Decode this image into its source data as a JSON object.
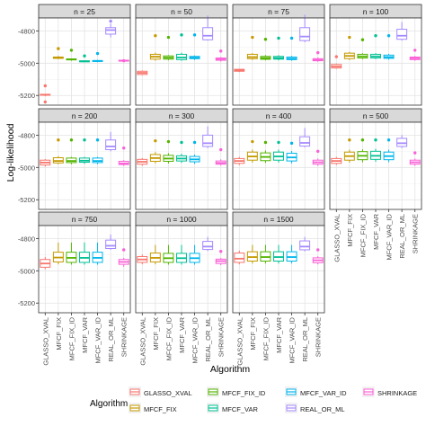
{
  "chart_data": {
    "type": "boxplot",
    "xlabel": "Algorithm",
    "ylabel": "Log-likelihood",
    "ylim": [
      -5260,
      -4720
    ],
    "y_ticks": [
      -5200,
      -5000,
      -4800
    ],
    "y_tick_labels": [
      "-5200",
      "-5000",
      "-4800"
    ],
    "legend_title": "Algorithm",
    "legend_position": "bottom",
    "grid": true,
    "categories": [
      "GLASSO_XVAL",
      "MFCF_FIX",
      "MFCF_FIX_ID",
      "MFCF_VAR",
      "MFCF_VAR_ID",
      "REAL_OR_ML",
      "SHRINKAGE"
    ],
    "colors": [
      "#F8766D",
      "#C49A00",
      "#53B400",
      "#00C094",
      "#00B6EB",
      "#A58AFF",
      "#FB61D7"
    ],
    "facets": [
      {
        "label": "n = 25",
        "boxes": [
          {
            "lo": -5205,
            "q1": -5195,
            "med": -5195,
            "q3": -5193,
            "hi": -5190,
            "out": [
              -5240,
              -5140
            ]
          },
          {
            "lo": -4975,
            "q1": -4970,
            "med": -4966,
            "q3": -4962,
            "hi": -4955,
            "out": [
              -4910
            ]
          },
          {
            "lo": -4985,
            "q1": -4978,
            "med": -4976,
            "q3": -4974,
            "hi": -4970,
            "out": [
              -4920
            ]
          },
          {
            "lo": -4995,
            "q1": -4990,
            "med": -4988,
            "q3": -4986,
            "hi": -4982,
            "out": [
              -4955
            ]
          },
          {
            "lo": -4994,
            "q1": -4988,
            "med": -4986,
            "q3": -4984,
            "hi": -4980,
            "out": [
              -4940
            ]
          },
          {
            "lo": -4840,
            "q1": -4820,
            "med": -4795,
            "q3": -4780,
            "hi": -4755,
            "out": [
              -4740
            ]
          },
          {
            "lo": -4992,
            "q1": -4986,
            "med": -4984,
            "q3": -4982,
            "hi": -4978,
            "out": [
              -4985
            ]
          }
        ]
      },
      {
        "label": "n = 50",
        "boxes": [
          {
            "lo": -5075,
            "q1": -5070,
            "med": -5060,
            "q3": -5050,
            "hi": -5045,
            "out": []
          },
          {
            "lo": -4985,
            "q1": -4975,
            "med": -4960,
            "q3": -4945,
            "hi": -4935,
            "out": [
              -4830
            ]
          },
          {
            "lo": -4982,
            "q1": -4975,
            "med": -4966,
            "q3": -4955,
            "hi": -4950,
            "out": [
              -4840
            ]
          },
          {
            "lo": -4985,
            "q1": -4978,
            "med": -4965,
            "q3": -4945,
            "hi": -4935,
            "out": [
              -4825
            ]
          },
          {
            "lo": -4980,
            "q1": -4972,
            "med": -4966,
            "q3": -4958,
            "hi": -4952,
            "out": [
              -4825
            ]
          },
          {
            "lo": -4860,
            "q1": -4855,
            "med": -4830,
            "q3": -4780,
            "hi": -4705,
            "out": []
          },
          {
            "lo": -4990,
            "q1": -4982,
            "med": -4976,
            "q3": -4968,
            "hi": -4962,
            "out": [
              -4925
            ]
          }
        ]
      },
      {
        "label": "n = 75",
        "boxes": [
          {
            "lo": -5055,
            "q1": -5050,
            "med": -5045,
            "q3": -5038,
            "hi": -5035,
            "out": []
          },
          {
            "lo": -4980,
            "q1": -4972,
            "med": -4962,
            "q3": -4945,
            "hi": -4938,
            "out": [
              -4840
            ]
          },
          {
            "lo": -4982,
            "q1": -4976,
            "med": -4968,
            "q3": -4958,
            "hi": -4950,
            "out": [
              -4852
            ]
          },
          {
            "lo": -4982,
            "q1": -4975,
            "med": -4968,
            "q3": -4958,
            "hi": -4950,
            "out": [
              -4845
            ]
          },
          {
            "lo": -4985,
            "q1": -4978,
            "med": -4972,
            "q3": -4962,
            "hi": -4955,
            "out": [
              -4845
            ]
          },
          {
            "lo": -4870,
            "q1": -4860,
            "med": -4835,
            "q3": -4780,
            "hi": -4700,
            "out": []
          },
          {
            "lo": -4992,
            "q1": -4985,
            "med": -4980,
            "q3": -4972,
            "hi": -4965,
            "out": [
              -4935
            ]
          }
        ]
      },
      {
        "label": "n = 100",
        "boxes": [
          {
            "lo": -5035,
            "q1": -5030,
            "med": -5020,
            "q3": -5008,
            "hi": -5002,
            "out": [
              -4960
            ]
          },
          {
            "lo": -4980,
            "q1": -4972,
            "med": -4955,
            "q3": -4938,
            "hi": -4930,
            "out": [
              -4840
            ]
          },
          {
            "lo": -4975,
            "q1": -4968,
            "med": -4958,
            "q3": -4945,
            "hi": -4938,
            "out": [
              -4855
            ]
          },
          {
            "lo": -4975,
            "q1": -4968,
            "med": -4958,
            "q3": -4945,
            "hi": -4938,
            "out": [
              -4830
            ]
          },
          {
            "lo": -4978,
            "q1": -4970,
            "med": -4962,
            "q3": -4950,
            "hi": -4942,
            "out": [
              -4830
            ]
          },
          {
            "lo": -4860,
            "q1": -4852,
            "med": -4830,
            "q3": -4790,
            "hi": -4745,
            "out": []
          },
          {
            "lo": -4985,
            "q1": -4978,
            "med": -4970,
            "q3": -4962,
            "hi": -4955,
            "out": [
              -4920
            ]
          }
        ]
      },
      {
        "label": "n = 200",
        "boxes": [
          {
            "lo": -4995,
            "q1": -4985,
            "med": -4970,
            "q3": -4955,
            "hi": -4948,
            "out": []
          },
          {
            "lo": -4980,
            "q1": -4972,
            "med": -4960,
            "q3": -4940,
            "hi": -4930,
            "out": [
              -4830
            ]
          },
          {
            "lo": -4980,
            "q1": -4970,
            "med": -4960,
            "q3": -4942,
            "hi": -4935,
            "out": [
              -4830
            ]
          },
          {
            "lo": -4978,
            "q1": -4968,
            "med": -4958,
            "q3": -4942,
            "hi": -4935,
            "out": [
              -4830
            ]
          },
          {
            "lo": -4980,
            "q1": -4970,
            "med": -4960,
            "q3": -4942,
            "hi": -4935,
            "out": [
              -4830
            ]
          },
          {
            "lo": -4900,
            "q1": -4890,
            "med": -4870,
            "q3": -4830,
            "hi": -4780,
            "out": []
          },
          {
            "lo": -4990,
            "q1": -4982,
            "med": -4975,
            "q3": -4962,
            "hi": -4955,
            "out": [
              -4880
            ]
          }
        ]
      },
      {
        "label": "n = 300",
        "boxes": [
          {
            "lo": -4990,
            "q1": -4980,
            "med": -4965,
            "q3": -4950,
            "hi": -4942,
            "out": []
          },
          {
            "lo": -4975,
            "q1": -4962,
            "med": -4942,
            "q3": -4920,
            "hi": -4905,
            "out": [
              -4835
            ]
          },
          {
            "lo": -4975,
            "q1": -4962,
            "med": -4945,
            "q3": -4925,
            "hi": -4912,
            "out": [
              -4840
            ]
          },
          {
            "lo": -4972,
            "q1": -4960,
            "med": -4945,
            "q3": -4928,
            "hi": -4915,
            "out": [
              -4845
            ]
          },
          {
            "lo": -4978,
            "q1": -4965,
            "med": -4950,
            "q3": -4932,
            "hi": -4920,
            "out": [
              -4845
            ]
          },
          {
            "lo": -4880,
            "q1": -4870,
            "med": -4850,
            "q3": -4800,
            "hi": -4745,
            "out": []
          },
          {
            "lo": -4988,
            "q1": -4980,
            "med": -4972,
            "q3": -4960,
            "hi": -4950,
            "out": [
              -4890
            ]
          }
        ]
      },
      {
        "label": "n = 400",
        "boxes": [
          {
            "lo": -4985,
            "q1": -4975,
            "med": -4960,
            "q3": -4945,
            "hi": -4935,
            "out": []
          },
          {
            "lo": -4970,
            "q1": -4955,
            "med": -4932,
            "q3": -4905,
            "hi": -4890,
            "out": [
              -4840
            ]
          },
          {
            "lo": -4972,
            "q1": -4958,
            "med": -4935,
            "q3": -4910,
            "hi": -4895,
            "out": [
              -4845
            ]
          },
          {
            "lo": -4970,
            "q1": -4955,
            "med": -4932,
            "q3": -4905,
            "hi": -4890,
            "out": [
              -4845
            ]
          },
          {
            "lo": -4975,
            "q1": -4960,
            "med": -4938,
            "q3": -4912,
            "hi": -4898,
            "out": [
              -4850
            ]
          },
          {
            "lo": -4875,
            "q1": -4868,
            "med": -4848,
            "q3": -4810,
            "hi": -4755,
            "out": []
          },
          {
            "lo": -4990,
            "q1": -4980,
            "med": -4968,
            "q3": -4955,
            "hi": -4945,
            "out": [
              -4900
            ]
          }
        ]
      },
      {
        "label": "n = 500",
        "boxes": [
          {
            "lo": -4985,
            "q1": -4975,
            "med": -4960,
            "q3": -4945,
            "hi": -4935,
            "out": []
          },
          {
            "lo": -4970,
            "q1": -4955,
            "med": -4930,
            "q3": -4905,
            "hi": -4890,
            "out": [
              -4830
            ]
          },
          {
            "lo": -4968,
            "q1": -4952,
            "med": -4928,
            "q3": -4902,
            "hi": -4888,
            "out": [
              -4830
            ]
          },
          {
            "lo": -4965,
            "q1": -4950,
            "med": -4928,
            "q3": -4900,
            "hi": -4885,
            "out": [
              -4830
            ]
          },
          {
            "lo": -4968,
            "q1": -4952,
            "med": -4930,
            "q3": -4905,
            "hi": -4890,
            "out": [
              -4830
            ]
          },
          {
            "lo": -4880,
            "q1": -4870,
            "med": -4850,
            "q3": -4820,
            "hi": -4800,
            "out": []
          },
          {
            "lo": -4990,
            "q1": -4980,
            "med": -4968,
            "q3": -4955,
            "hi": -4945,
            "out": [
              -4910
            ]
          }
        ]
      },
      {
        "label": "n = 750",
        "boxes": [
          {
            "lo": -4990,
            "q1": -4978,
            "med": -4955,
            "q3": -4930,
            "hi": -4915,
            "out": []
          },
          {
            "lo": -4960,
            "q1": -4945,
            "med": -4918,
            "q3": -4885,
            "hi": -4825,
            "out": []
          },
          {
            "lo": -4962,
            "q1": -4948,
            "med": -4920,
            "q3": -4885,
            "hi": -4825,
            "out": []
          },
          {
            "lo": -4962,
            "q1": -4948,
            "med": -4920,
            "q3": -4885,
            "hi": -4825,
            "out": []
          },
          {
            "lo": -4962,
            "q1": -4948,
            "med": -4920,
            "q3": -4885,
            "hi": -4825,
            "out": []
          },
          {
            "lo": -4870,
            "q1": -4862,
            "med": -4845,
            "q3": -4810,
            "hi": -4775,
            "out": []
          },
          {
            "lo": -4975,
            "q1": -4960,
            "med": -4945,
            "q3": -4930,
            "hi": -4920,
            "out": [
              -4870
            ]
          }
        ]
      },
      {
        "label": "n = 1000",
        "boxes": [
          {
            "lo": -4960,
            "q1": -4948,
            "med": -4930,
            "q3": -4912,
            "hi": -4900,
            "out": []
          },
          {
            "lo": -4960,
            "q1": -4945,
            "med": -4920,
            "q3": -4890,
            "hi": -4840,
            "out": []
          },
          {
            "lo": -4962,
            "q1": -4948,
            "med": -4922,
            "q3": -4892,
            "hi": -4840,
            "out": []
          },
          {
            "lo": -4962,
            "q1": -4948,
            "med": -4922,
            "q3": -4892,
            "hi": -4840,
            "out": []
          },
          {
            "lo": -4962,
            "q1": -4948,
            "med": -4922,
            "q3": -4892,
            "hi": -4840,
            "out": []
          },
          {
            "lo": -4878,
            "q1": -4868,
            "med": -4850,
            "q3": -4818,
            "hi": -4790,
            "out": []
          },
          {
            "lo": -4965,
            "q1": -4955,
            "med": -4940,
            "q3": -4928,
            "hi": -4920,
            "out": [
              -4880
            ]
          }
        ]
      },
      {
        "label": "n = 1500",
        "boxes": [
          {
            "lo": -4960,
            "q1": -4948,
            "med": -4925,
            "q3": -4890,
            "hi": -4875,
            "out": []
          },
          {
            "lo": -4955,
            "q1": -4940,
            "med": -4915,
            "q3": -4882,
            "hi": -4840,
            "out": []
          },
          {
            "lo": -4955,
            "q1": -4940,
            "med": -4915,
            "q3": -4882,
            "hi": -4840,
            "out": []
          },
          {
            "lo": -4955,
            "q1": -4940,
            "med": -4915,
            "q3": -4882,
            "hi": -4840,
            "out": []
          },
          {
            "lo": -4955,
            "q1": -4940,
            "med": -4915,
            "q3": -4882,
            "hi": -4840,
            "out": []
          },
          {
            "lo": -4880,
            "q1": -4870,
            "med": -4850,
            "q3": -4815,
            "hi": -4790,
            "out": []
          },
          {
            "lo": -4960,
            "q1": -4950,
            "med": -4935,
            "q3": -4920,
            "hi": -4910,
            "out": [
              -4870
            ]
          }
        ]
      }
    ]
  }
}
